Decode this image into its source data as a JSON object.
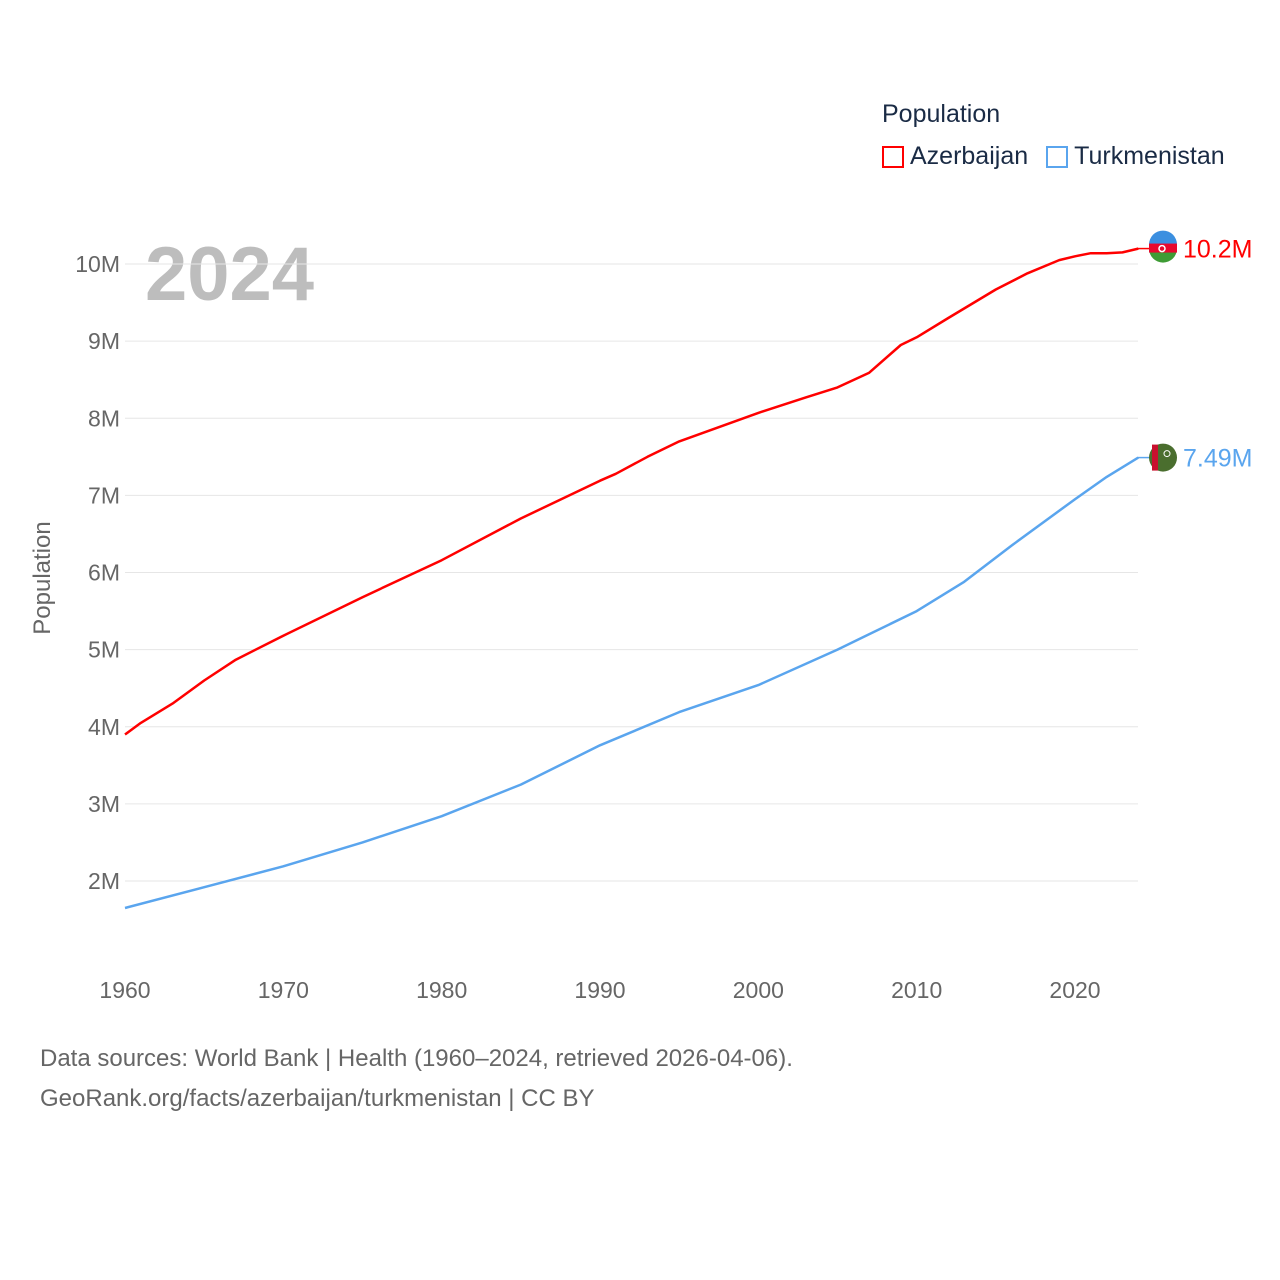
{
  "chart_data": {
    "type": "line",
    "title": "",
    "xlabel": "",
    "ylabel": "Population",
    "year_watermark": "2024",
    "xlim": [
      1960,
      2024
    ],
    "ylim": [
      1.3,
      10.6
    ],
    "y_unit": "millions",
    "x_ticks": [
      "1960",
      "1970",
      "1980",
      "1990",
      "2000",
      "2010",
      "2020"
    ],
    "y_ticks": [
      {
        "value": 2,
        "label": "2M"
      },
      {
        "value": 3,
        "label": "3M"
      },
      {
        "value": 4,
        "label": "4M"
      },
      {
        "value": 5,
        "label": "5M"
      },
      {
        "value": 6,
        "label": "6M"
      },
      {
        "value": 7,
        "label": "7M"
      },
      {
        "value": 8,
        "label": "8M"
      },
      {
        "value": 9,
        "label": "9M"
      },
      {
        "value": 10,
        "label": "10M"
      }
    ],
    "grid": true,
    "legend_title": "Population",
    "legend_position": "top-right",
    "series": [
      {
        "name": "Azerbaijan",
        "color": "#ff0000",
        "end_label": "10.2M",
        "x": [
          1960,
          1961,
          1963,
          1965,
          1967,
          1970,
          1975,
          1980,
          1985,
          1990,
          1991,
          1993,
          1995,
          2000,
          2003,
          2005,
          2007,
          2009,
          2010,
          2012,
          2015,
          2017,
          2019,
          2020,
          2021,
          2022,
          2023,
          2024
        ],
        "y": [
          3.9,
          4.05,
          4.3,
          4.6,
          4.87,
          5.18,
          5.68,
          6.16,
          6.7,
          7.19,
          7.28,
          7.5,
          7.7,
          8.07,
          8.27,
          8.4,
          8.59,
          8.95,
          9.05,
          9.3,
          9.67,
          9.88,
          10.05,
          10.1,
          10.14,
          10.14,
          10.15,
          10.2
        ]
      },
      {
        "name": "Turkmenistan",
        "color": "#5aa5ee",
        "end_label": "7.49M",
        "x": [
          1960,
          1965,
          1970,
          1975,
          1980,
          1985,
          1990,
          1995,
          2000,
          2005,
          2010,
          2013,
          2016,
          2020,
          2022,
          2024
        ],
        "y": [
          1.65,
          1.92,
          2.19,
          2.5,
          2.84,
          3.25,
          3.76,
          4.19,
          4.54,
          5.0,
          5.5,
          5.88,
          6.35,
          6.95,
          7.24,
          7.49
        ]
      }
    ]
  },
  "footer": {
    "line1": "Data sources: World Bank | Health (1960–2024, retrieved 2026-04-06).",
    "line2": "GeoRank.org/facts/azerbaijan/turkmenistan | CC BY"
  }
}
